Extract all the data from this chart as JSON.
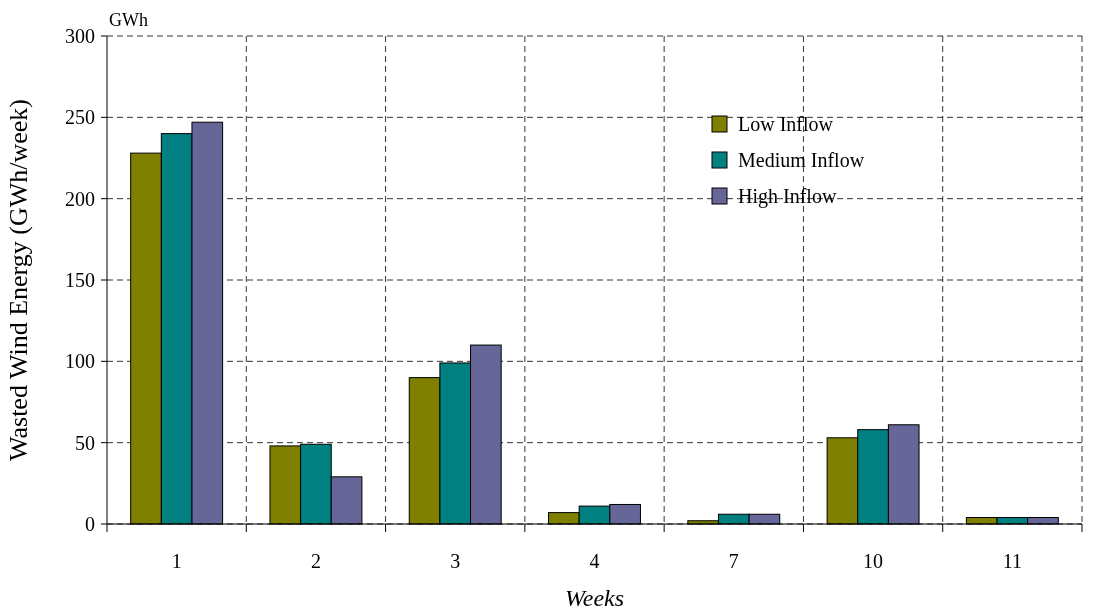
{
  "chart_data": {
    "type": "bar",
    "ylabel": "Wasted Wind Energy (GWh/week)",
    "xlabel": "Weeks",
    "annotations": [
      "GWh"
    ],
    "categories": [
      "1",
      "2",
      "3",
      "4",
      "7",
      "10",
      "11"
    ],
    "series": [
      {
        "name": "Low Inflow",
        "color": "#808000",
        "values": [
          228,
          48,
          90,
          7,
          2,
          53,
          4
        ]
      },
      {
        "name": "Medium Inflow",
        "color": "#008080",
        "values": [
          240,
          49,
          99,
          11,
          6,
          58,
          4
        ]
      },
      {
        "name": "High Inflow",
        "color": "#666699",
        "values": [
          247,
          29,
          110,
          12,
          6,
          61,
          4
        ]
      }
    ],
    "ylim": [
      0,
      300
    ],
    "yticks": [
      0,
      50,
      100,
      150,
      200,
      250,
      300
    ],
    "grid": true,
    "legend": "top right"
  }
}
